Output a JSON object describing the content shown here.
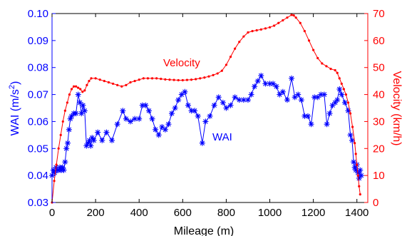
{
  "chart_data": {
    "type": "line",
    "xlabel": "Mileage (m)",
    "xlim": [
      0,
      1450
    ],
    "x_ticks": [
      0,
      200,
      400,
      600,
      800,
      1000,
      1200,
      1400
    ],
    "y_left": {
      "label_main": "WAI (m/s",
      "label_sup": "2",
      "label_close": ")",
      "lim": [
        0.03,
        0.1
      ],
      "ticks": [
        "0.03",
        "0.04",
        "0.05",
        "0.06",
        "0.07",
        "0.08",
        "0.09",
        "0.10"
      ],
      "color": "#0000ff"
    },
    "y_right": {
      "label": "Velocity (km/h)",
      "lim": [
        0,
        70
      ],
      "ticks": [
        "0",
        "10",
        "20",
        "30",
        "40",
        "50",
        "60",
        "70"
      ],
      "color": "#ff0000"
    },
    "annotations": [
      {
        "text": "Velocity",
        "color": "#ff0000"
      },
      {
        "text": "WAI",
        "color": "#0000ff"
      }
    ],
    "series": [
      {
        "axis": "left",
        "color": "#0000ff",
        "marker": "asterisk",
        "points": [
          [
            0,
            0.04
          ],
          [
            6,
            0.042
          ],
          [
            12,
            0.041
          ],
          [
            18,
            0.043
          ],
          [
            24,
            0.042
          ],
          [
            30,
            0.042
          ],
          [
            36,
            0.043
          ],
          [
            42,
            0.042
          ],
          [
            48,
            0.043
          ],
          [
            54,
            0.042
          ],
          [
            60,
            0.045
          ],
          [
            66,
            0.05
          ],
          [
            72,
            0.052
          ],
          [
            78,
            0.057
          ],
          [
            84,
            0.061
          ],
          [
            90,
            0.062
          ],
          [
            100,
            0.063
          ],
          [
            110,
            0.063
          ],
          [
            120,
            0.07
          ],
          [
            128,
            0.067
          ],
          [
            135,
            0.063
          ],
          [
            142,
            0.066
          ],
          [
            150,
            0.064
          ],
          [
            158,
            0.051
          ],
          [
            166,
            0.052
          ],
          [
            172,
            0.053
          ],
          [
            178,
            0.051
          ],
          [
            184,
            0.054
          ],
          [
            192,
            0.053
          ],
          [
            210,
            0.056
          ],
          [
            230,
            0.053
          ],
          [
            250,
            0.056
          ],
          [
            275,
            0.053
          ],
          [
            300,
            0.059
          ],
          [
            325,
            0.064
          ],
          [
            340,
            0.061
          ],
          [
            360,
            0.06
          ],
          [
            380,
            0.061
          ],
          [
            400,
            0.061
          ],
          [
            415,
            0.066
          ],
          [
            430,
            0.066
          ],
          [
            445,
            0.064
          ],
          [
            460,
            0.061
          ],
          [
            475,
            0.057
          ],
          [
            490,
            0.055
          ],
          [
            505,
            0.058
          ],
          [
            520,
            0.057
          ],
          [
            535,
            0.059
          ],
          [
            550,
            0.063
          ],
          [
            565,
            0.065
          ],
          [
            580,
            0.068
          ],
          [
            595,
            0.07
          ],
          [
            610,
            0.071
          ],
          [
            625,
            0.066
          ],
          [
            640,
            0.064
          ],
          [
            655,
            0.064
          ],
          [
            670,
            0.062
          ],
          [
            690,
            0.052
          ],
          [
            705,
            0.06
          ],
          [
            725,
            0.062
          ],
          [
            745,
            0.066
          ],
          [
            765,
            0.069
          ],
          [
            785,
            0.067
          ],
          [
            800,
            0.065
          ],
          [
            820,
            0.066
          ],
          [
            840,
            0.069
          ],
          [
            860,
            0.068
          ],
          [
            880,
            0.068
          ],
          [
            900,
            0.068
          ],
          [
            915,
            0.07
          ],
          [
            930,
            0.073
          ],
          [
            945,
            0.075
          ],
          [
            960,
            0.077
          ],
          [
            980,
            0.074
          ],
          [
            1000,
            0.074
          ],
          [
            1015,
            0.074
          ],
          [
            1030,
            0.073
          ],
          [
            1045,
            0.07
          ],
          [
            1060,
            0.071
          ],
          [
            1080,
            0.068
          ],
          [
            1100,
            0.076
          ],
          [
            1115,
            0.069
          ],
          [
            1130,
            0.07
          ],
          [
            1145,
            0.068
          ],
          [
            1160,
            0.062
          ],
          [
            1175,
            0.062
          ],
          [
            1190,
            0.059
          ],
          [
            1205,
            0.069
          ],
          [
            1220,
            0.069
          ],
          [
            1235,
            0.07
          ],
          [
            1250,
            0.07
          ],
          [
            1262,
            0.059
          ],
          [
            1275,
            0.063
          ],
          [
            1288,
            0.066
          ],
          [
            1300,
            0.067
          ],
          [
            1310,
            0.068
          ],
          [
            1320,
            0.072
          ],
          [
            1330,
            0.07
          ],
          [
            1345,
            0.067
          ],
          [
            1360,
            0.064
          ],
          [
            1370,
            0.055
          ],
          [
            1378,
            0.053
          ],
          [
            1385,
            0.045
          ],
          [
            1390,
            0.043
          ],
          [
            1395,
            0.042
          ],
          [
            1400,
            0.044
          ],
          [
            1405,
            0.041
          ],
          [
            1410,
            0.039
          ],
          [
            1415,
            0.042
          ],
          [
            1420,
            0.04
          ]
        ]
      },
      {
        "axis": "right",
        "color": "#ff0000",
        "marker": "dot",
        "points": [
          [
            0,
            0
          ],
          [
            10,
            8
          ],
          [
            20,
            14
          ],
          [
            30,
            20
          ],
          [
            40,
            25
          ],
          [
            50,
            30
          ],
          [
            60,
            34
          ],
          [
            70,
            37
          ],
          [
            80,
            40
          ],
          [
            90,
            42
          ],
          [
            100,
            43
          ],
          [
            110,
            43
          ],
          [
            120,
            42.5
          ],
          [
            130,
            42
          ],
          [
            140,
            41
          ],
          [
            150,
            41.5
          ],
          [
            160,
            43.5
          ],
          [
            170,
            45
          ],
          [
            180,
            46
          ],
          [
            200,
            46
          ],
          [
            220,
            45.5
          ],
          [
            240,
            45
          ],
          [
            260,
            44.5
          ],
          [
            280,
            44
          ],
          [
            300,
            43.5
          ],
          [
            320,
            43
          ],
          [
            340,
            43.5
          ],
          [
            360,
            44.5
          ],
          [
            380,
            45
          ],
          [
            400,
            45.5
          ],
          [
            420,
            46
          ],
          [
            440,
            46
          ],
          [
            460,
            46
          ],
          [
            480,
            46
          ],
          [
            500,
            45.8
          ],
          [
            520,
            45.6
          ],
          [
            540,
            45.5
          ],
          [
            560,
            45.4
          ],
          [
            580,
            45.3
          ],
          [
            600,
            45.3
          ],
          [
            620,
            45.4
          ],
          [
            640,
            45.5
          ],
          [
            660,
            45.7
          ],
          [
            680,
            46
          ],
          [
            700,
            46.3
          ],
          [
            720,
            46.7
          ],
          [
            740,
            47.2
          ],
          [
            760,
            47.8
          ],
          [
            780,
            48.8
          ],
          [
            800,
            51
          ],
          [
            820,
            54
          ],
          [
            840,
            57
          ],
          [
            860,
            59.5
          ],
          [
            880,
            61.5
          ],
          [
            900,
            63
          ],
          [
            920,
            63.5
          ],
          [
            940,
            63.8
          ],
          [
            960,
            64.1
          ],
          [
            980,
            64.5
          ],
          [
            1000,
            64.9
          ],
          [
            1020,
            65.5
          ],
          [
            1040,
            66.5
          ],
          [
            1060,
            67.5
          ],
          [
            1080,
            68.5
          ],
          [
            1100,
            69.5
          ],
          [
            1110,
            69.3
          ],
          [
            1120,
            68.5
          ],
          [
            1140,
            66.5
          ],
          [
            1160,
            63.5
          ],
          [
            1180,
            60
          ],
          [
            1200,
            56.5
          ],
          [
            1220,
            53.5
          ],
          [
            1240,
            51.5
          ],
          [
            1260,
            50.5
          ],
          [
            1280,
            49.5
          ],
          [
            1300,
            49
          ],
          [
            1310,
            48
          ],
          [
            1320,
            46
          ],
          [
            1330,
            44
          ],
          [
            1340,
            42
          ],
          [
            1350,
            40
          ],
          [
            1360,
            37
          ],
          [
            1370,
            33
          ],
          [
            1380,
            28
          ],
          [
            1390,
            22
          ],
          [
            1395,
            18
          ],
          [
            1400,
            14
          ],
          [
            1405,
            10
          ],
          [
            1410,
            6
          ],
          [
            1415,
            3
          ]
        ]
      }
    ]
  }
}
